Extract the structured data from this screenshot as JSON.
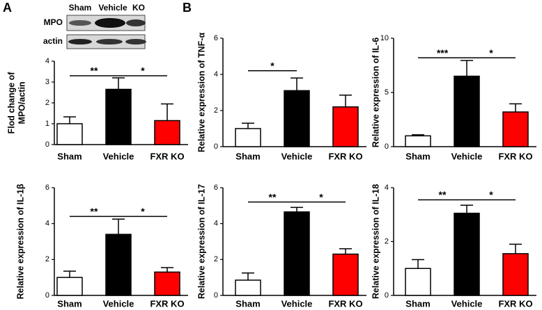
{
  "panel_labels": [
    "A",
    "B"
  ],
  "blot": {
    "lanes": [
      "Sham",
      "Vehicle",
      "KO"
    ],
    "rows": [
      "MPO",
      "actin"
    ]
  },
  "chart_data": [
    {
      "type": "bar",
      "ylabel": [
        "Flod change of",
        "MPO/actin"
      ],
      "categories": [
        "Sham",
        "Vehicle",
        "FXR KO"
      ],
      "values": [
        1.0,
        2.65,
        1.15
      ],
      "errors": [
        0.33,
        0.55,
        0.8
      ],
      "colors": [
        "#ffffff",
        "#000000",
        "#ff0000"
      ],
      "ylim": [
        0,
        4
      ],
      "yticks": [
        0,
        1,
        2,
        3,
        4
      ],
      "significance": [
        {
          "label": "**",
          "from": 0,
          "to": 1,
          "y": 3.3
        },
        {
          "label": "*",
          "from": 1,
          "to": 2,
          "y": 3.3
        }
      ]
    },
    {
      "type": "bar",
      "ylabel": "Relative expression of TNF-α",
      "categories": [
        "Sham",
        "Vehicle",
        "FXR KO"
      ],
      "values": [
        1.0,
        3.1,
        2.2
      ],
      "errors": [
        0.3,
        0.7,
        0.65
      ],
      "colors": [
        "#ffffff",
        "#000000",
        "#ff0000"
      ],
      "ylim": [
        0,
        6
      ],
      "yticks": [
        0,
        2,
        4,
        6
      ],
      "significance": [
        {
          "label": "*",
          "from": 0,
          "to": 1,
          "y": 4.2
        }
      ]
    },
    {
      "type": "bar",
      "ylabel": "Relative expression of IL-6",
      "categories": [
        "Sham",
        "Vehicle",
        "FXR KO"
      ],
      "values": [
        1.0,
        6.5,
        3.2
      ],
      "errors": [
        0.1,
        1.45,
        0.75
      ],
      "colors": [
        "#ffffff",
        "#000000",
        "#ff0000"
      ],
      "ylim": [
        0,
        10
      ],
      "yticks": [
        0,
        5,
        10
      ],
      "significance": [
        {
          "label": "***",
          "from": 0,
          "to": 1,
          "y": 8.2
        },
        {
          "label": "*",
          "from": 1,
          "to": 2,
          "y": 8.2
        }
      ]
    },
    {
      "type": "bar",
      "ylabel": "Relative expression of IL-1β",
      "categories": [
        "Sham",
        "Vehicle",
        "FXR KO"
      ],
      "values": [
        1.0,
        3.4,
        1.3
      ],
      "errors": [
        0.35,
        0.85,
        0.25
      ],
      "colors": [
        "#ffffff",
        "#000000",
        "#ff0000"
      ],
      "ylim": [
        0,
        6
      ],
      "yticks": [
        0,
        2,
        4,
        6
      ],
      "significance": [
        {
          "label": "**",
          "from": 0,
          "to": 1,
          "y": 4.4
        },
        {
          "label": "*",
          "from": 1,
          "to": 2,
          "y": 4.4
        }
      ]
    },
    {
      "type": "bar",
      "ylabel": "Relative expression of IL-17",
      "categories": [
        "Sham",
        "Vehicle",
        "FXR KO"
      ],
      "values": [
        0.85,
        4.65,
        2.3
      ],
      "errors": [
        0.4,
        0.25,
        0.3
      ],
      "colors": [
        "#ffffff",
        "#000000",
        "#ff0000"
      ],
      "ylim": [
        0,
        6
      ],
      "yticks": [
        0,
        2,
        4,
        6
      ],
      "significance": [
        {
          "label": "**",
          "from": 0,
          "to": 1,
          "y": 5.2
        },
        {
          "label": "*",
          "from": 1,
          "to": 2,
          "y": 5.2
        }
      ]
    },
    {
      "type": "bar",
      "ylabel": "Relative expression of IL-18",
      "categories": [
        "Sham",
        "Vehicle",
        "FXR KO"
      ],
      "values": [
        1.0,
        3.05,
        1.55
      ],
      "errors": [
        0.33,
        0.3,
        0.35
      ],
      "colors": [
        "#ffffff",
        "#000000",
        "#ff0000"
      ],
      "ylim": [
        0,
        4
      ],
      "yticks": [
        0,
        2,
        4
      ],
      "significance": [
        {
          "label": "**",
          "from": 0,
          "to": 1,
          "y": 3.55
        },
        {
          "label": "*",
          "from": 1,
          "to": 2,
          "y": 3.55
        }
      ]
    }
  ]
}
